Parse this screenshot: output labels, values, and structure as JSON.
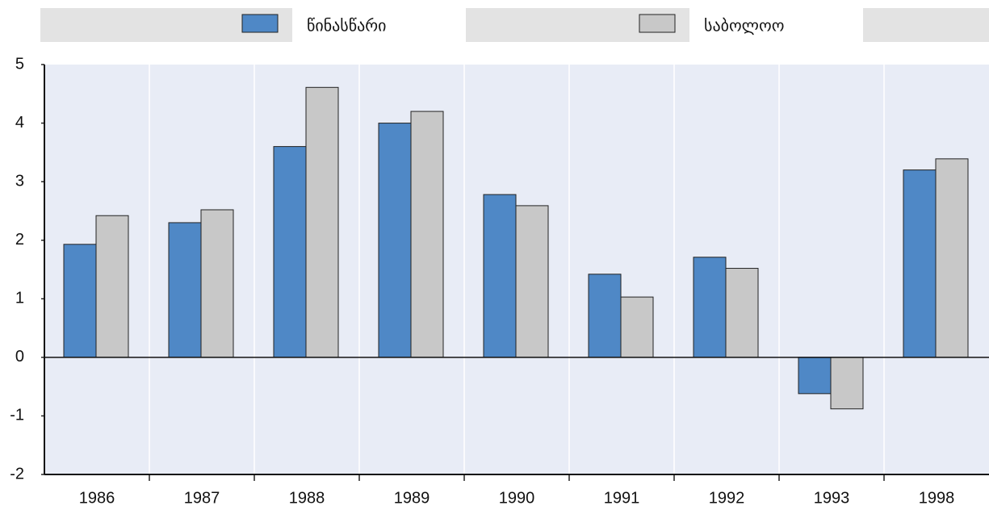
{
  "chart_data": {
    "type": "bar",
    "categories": [
      "1986",
      "1987",
      "1988",
      "1989",
      "1990",
      "1991",
      "1992",
      "1993",
      "1998"
    ],
    "series": [
      {
        "name": "წინასწარი",
        "color": "#4f88c6",
        "values": [
          1.93,
          2.3,
          3.6,
          4.0,
          2.78,
          1.42,
          1.71,
          -0.62,
          3.2
        ]
      },
      {
        "name": "საბოლოო",
        "color": "#c8c8c8",
        "values": [
          2.42,
          2.52,
          4.61,
          4.2,
          2.59,
          1.03,
          1.52,
          -0.88,
          3.39
        ]
      }
    ],
    "ylim": [
      -2,
      5
    ],
    "yticks": [
      -2,
      -1,
      0,
      1,
      2,
      3,
      4,
      5
    ],
    "legend": "top"
  }
}
